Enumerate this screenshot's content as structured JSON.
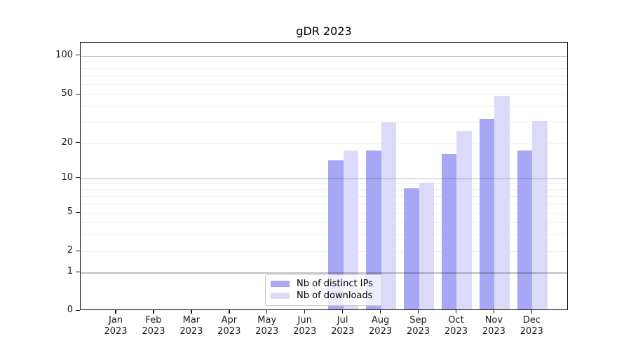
{
  "chart_data": {
    "type": "bar",
    "title": "gDR 2023",
    "x_year": "2023",
    "months": [
      "Jan",
      "Feb",
      "Mar",
      "Apr",
      "May",
      "Jun",
      "Jul",
      "Aug",
      "Sep",
      "Oct",
      "Nov",
      "Dec"
    ],
    "series": [
      {
        "name": "Nb of distinct IPs",
        "color": "#a7a7f5",
        "values": [
          0,
          0,
          0,
          0,
          0,
          0,
          14,
          17,
          8,
          16,
          31,
          17
        ]
      },
      {
        "name": "Nb of downloads",
        "color": "#dbdbf9",
        "values": [
          0,
          0,
          0,
          0,
          0,
          0,
          17,
          29,
          9,
          25,
          48,
          30
        ]
      }
    ],
    "y_axis": {
      "scale": "log-like (symlog)",
      "tick_values": [
        0,
        1,
        2,
        5,
        10,
        20,
        50,
        100
      ],
      "minor_grid_values": [
        2,
        3,
        4,
        5,
        6,
        7,
        8,
        9,
        20,
        30,
        40,
        50,
        60,
        70,
        80,
        90
      ],
      "major_grid_values": [
        1,
        10,
        100
      ],
      "range": [
        0,
        130
      ]
    },
    "legend": {
      "position": "lower center"
    },
    "grid": true
  }
}
